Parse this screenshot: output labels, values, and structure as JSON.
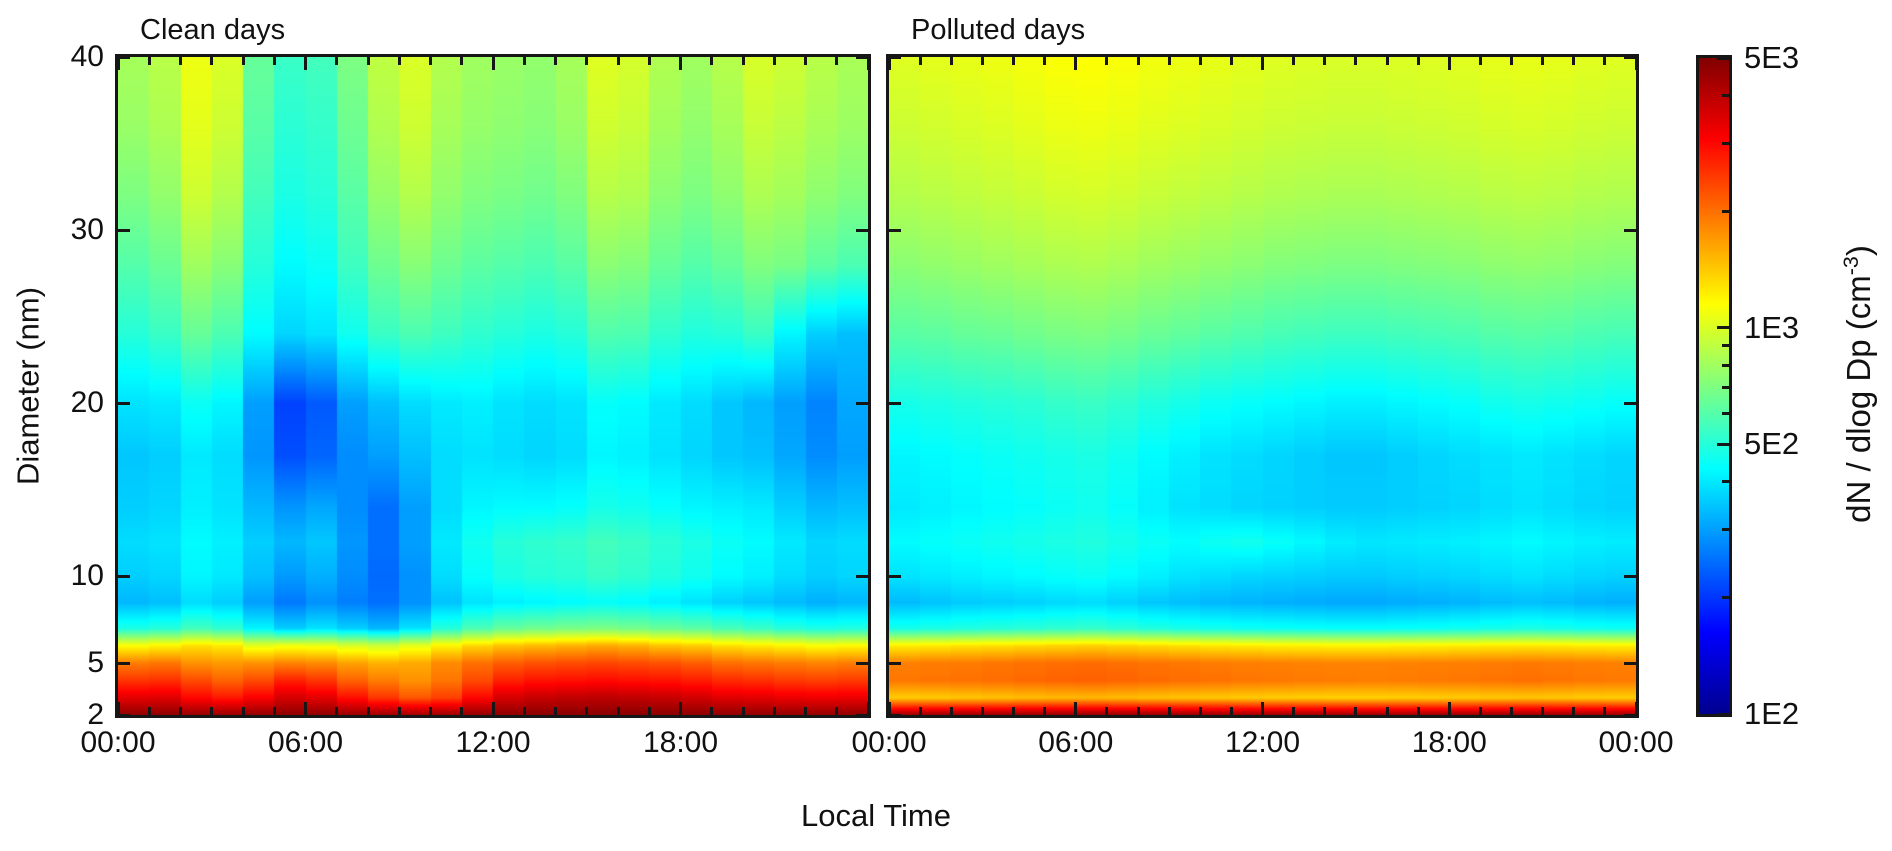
{
  "chart_data": {
    "type": "heatmap",
    "xlabel": "Local Time",
    "ylabel": "Diameter (nm)",
    "value_label": "dN / dlog Dp (cm-3)",
    "hours": [
      0,
      1,
      2,
      3,
      4,
      5,
      6,
      7,
      8,
      9,
      10,
      11,
      12,
      13,
      14,
      15,
      16,
      17,
      18,
      19,
      20,
      21,
      22,
      23
    ],
    "x_axis": {
      "unit": "hour",
      "range": [
        0,
        24
      ],
      "major_tick_hours": [
        0,
        6,
        12,
        18,
        24
      ],
      "minor_tick_step_hours": 1
    },
    "y_axis": {
      "unit": "nm",
      "scale": "linear",
      "range": [
        2,
        40
      ],
      "ticks": [
        40,
        30,
        20,
        10,
        5,
        2
      ]
    },
    "diameters_nm": [
      40,
      36,
      32,
      28,
      24,
      20,
      17,
      14,
      12,
      10,
      8.5,
      7,
      6,
      5,
      4,
      3,
      2
    ],
    "panels": [
      {
        "title": "Clean days",
        "x_labels": [
          {
            "h": 0,
            "t": "00:00"
          },
          {
            "h": 6,
            "t": "06:00"
          },
          {
            "h": 12,
            "t": "12:00"
          },
          {
            "h": 18,
            "t": "18:00"
          }
        ],
        "values_dN_dlogDp": [
          [
            820,
            880,
            1080,
            1000,
            640,
            540,
            560,
            700,
            900,
            1000,
            860,
            800,
            780,
            760,
            820,
            1020,
            980,
            850,
            800,
            870,
            990,
            950,
            880,
            830
          ],
          [
            780,
            840,
            1040,
            950,
            610,
            510,
            530,
            660,
            850,
            950,
            820,
            770,
            750,
            730,
            780,
            960,
            930,
            810,
            760,
            820,
            930,
            890,
            830,
            790
          ],
          [
            700,
            760,
            950,
            860,
            560,
            480,
            500,
            610,
            770,
            860,
            760,
            710,
            690,
            670,
            710,
            870,
            850,
            740,
            700,
            750,
            840,
            810,
            750,
            710
          ],
          [
            600,
            650,
            800,
            730,
            500,
            430,
            450,
            550,
            660,
            730,
            660,
            620,
            600,
            580,
            610,
            740,
            720,
            640,
            600,
            640,
            710,
            690,
            620,
            580
          ],
          [
            500,
            540,
            640,
            580,
            430,
            370,
            390,
            460,
            540,
            580,
            550,
            520,
            500,
            480,
            500,
            590,
            580,
            520,
            490,
            500,
            540,
            420,
            360,
            340
          ],
          [
            390,
            400,
            450,
            420,
            300,
            210,
            230,
            300,
            340,
            380,
            400,
            410,
            390,
            380,
            390,
            440,
            430,
            400,
            380,
            350,
            330,
            300,
            270,
            310
          ],
          [
            350,
            360,
            400,
            380,
            290,
            220,
            240,
            280,
            300,
            340,
            380,
            390,
            380,
            370,
            380,
            420,
            410,
            390,
            370,
            350,
            340,
            310,
            280,
            300
          ],
          [
            360,
            370,
            410,
            390,
            330,
            290,
            310,
            280,
            250,
            300,
            380,
            420,
            430,
            430,
            440,
            470,
            460,
            440,
            420,
            410,
            400,
            360,
            330,
            340
          ],
          [
            380,
            390,
            430,
            410,
            360,
            330,
            350,
            290,
            250,
            300,
            400,
            460,
            500,
            520,
            530,
            560,
            540,
            510,
            480,
            450,
            430,
            400,
            370,
            380
          ],
          [
            360,
            370,
            420,
            400,
            340,
            295,
            320,
            280,
            245,
            285,
            380,
            440,
            480,
            500,
            510,
            540,
            520,
            490,
            460,
            430,
            410,
            380,
            360,
            370
          ],
          [
            330,
            340,
            380,
            360,
            300,
            260,
            285,
            265,
            250,
            285,
            345,
            390,
            410,
            420,
            430,
            440,
            430,
            410,
            390,
            365,
            350,
            335,
            320,
            330
          ],
          [
            480,
            500,
            560,
            520,
            420,
            360,
            390,
            360,
            330,
            390,
            500,
            580,
            640,
            670,
            690,
            700,
            680,
            650,
            620,
            570,
            540,
            500,
            480,
            490
          ],
          [
            1150,
            1200,
            1300,
            1250,
            1050,
            1100,
            1080,
            1000,
            950,
            1050,
            1200,
            1350,
            1450,
            1500,
            1550,
            1600,
            1550,
            1450,
            1400,
            1300,
            1250,
            1200,
            1150,
            1180
          ],
          [
            1900,
            1950,
            1750,
            1700,
            1750,
            1850,
            1800,
            1650,
            1550,
            1600,
            1800,
            2000,
            2150,
            2250,
            2300,
            2350,
            2300,
            2250,
            2150,
            2000,
            1950,
            1900,
            1850,
            1900
          ],
          [
            2500,
            2550,
            2300,
            2100,
            2300,
            2700,
            2500,
            2100,
            1900,
            1750,
            1950,
            2300,
            2700,
            2850,
            2900,
            2950,
            2900,
            2850,
            2750,
            2600,
            2550,
            2450,
            2400,
            2450
          ],
          [
            3400,
            3450,
            3000,
            2800,
            3100,
            3600,
            3400,
            2900,
            2500,
            2200,
            2400,
            3000,
            3600,
            3800,
            3900,
            3950,
            3900,
            3800,
            3650,
            3450,
            3400,
            3300,
            3250,
            3300
          ],
          [
            4700,
            4750,
            4600,
            4550,
            4650,
            4750,
            4700,
            4550,
            4450,
            4400,
            4500,
            4650,
            4750,
            4800,
            4820,
            4850,
            4820,
            4800,
            4770,
            4700,
            4680,
            4650,
            4630,
            4660
          ]
        ]
      },
      {
        "title": "Polluted days",
        "x_labels": [
          {
            "h": 0,
            "t": "00:00"
          },
          {
            "h": 6,
            "t": "06:00"
          },
          {
            "h": 12,
            "t": "12:00"
          },
          {
            "h": 18,
            "t": "18:00"
          },
          {
            "h": 24,
            "t": "00:00"
          }
        ],
        "values_dN_dlogDp": [
          [
            1020,
            1040,
            1060,
            1080,
            1110,
            1140,
            1150,
            1130,
            1100,
            1080,
            1060,
            1040,
            1020,
            1010,
            1000,
            1000,
            1010,
            1020,
            1030,
            1050,
            1060,
            1050,
            1030,
            1020
          ],
          [
            950,
            970,
            990,
            1010,
            1040,
            1070,
            1080,
            1060,
            1030,
            1010,
            990,
            970,
            950,
            940,
            930,
            930,
            940,
            950,
            960,
            980,
            990,
            980,
            960,
            950
          ],
          [
            860,
            880,
            900,
            920,
            940,
            970,
            980,
            960,
            930,
            910,
            890,
            870,
            850,
            840,
            830,
            830,
            840,
            850,
            860,
            880,
            890,
            880,
            860,
            850
          ],
          [
            740,
            760,
            780,
            800,
            820,
            840,
            850,
            830,
            800,
            780,
            760,
            740,
            720,
            710,
            700,
            700,
            710,
            720,
            730,
            750,
            760,
            750,
            730,
            720
          ],
          [
            610,
            620,
            640,
            650,
            670,
            690,
            700,
            680,
            650,
            630,
            610,
            590,
            570,
            560,
            550,
            550,
            560,
            570,
            580,
            600,
            610,
            600,
            580,
            570
          ],
          [
            470,
            480,
            490,
            500,
            510,
            530,
            540,
            520,
            490,
            470,
            450,
            440,
            430,
            420,
            410,
            410,
            420,
            430,
            440,
            460,
            470,
            460,
            450,
            440
          ],
          [
            420,
            430,
            440,
            450,
            460,
            470,
            480,
            460,
            430,
            410,
            390,
            380,
            370,
            360,
            350,
            350,
            360,
            370,
            380,
            390,
            400,
            390,
            380,
            370
          ],
          [
            400,
            410,
            420,
            430,
            440,
            450,
            460,
            440,
            410,
            390,
            380,
            370,
            365,
            360,
            355,
            355,
            360,
            365,
            370,
            380,
            390,
            380,
            370,
            365
          ],
          [
            430,
            440,
            450,
            460,
            470,
            480,
            490,
            470,
            450,
            435,
            455,
            465,
            445,
            425,
            405,
            395,
            400,
            405,
            410,
            420,
            430,
            420,
            410,
            405
          ],
          [
            390,
            400,
            410,
            420,
            430,
            440,
            450,
            430,
            410,
            390,
            380,
            370,
            365,
            360,
            355,
            355,
            360,
            365,
            370,
            380,
            390,
            380,
            370,
            365
          ],
          [
            335,
            345,
            355,
            360,
            365,
            375,
            380,
            365,
            350,
            340,
            330,
            325,
            320,
            315,
            310,
            310,
            315,
            320,
            325,
            335,
            340,
            335,
            325,
            320
          ],
          [
            470,
            480,
            490,
            500,
            510,
            520,
            530,
            510,
            490,
            475,
            465,
            455,
            450,
            445,
            440,
            440,
            445,
            450,
            460,
            470,
            480,
            470,
            460,
            455
          ],
          [
            1230,
            1250,
            1280,
            1300,
            1330,
            1360,
            1380,
            1350,
            1320,
            1290,
            1260,
            1240,
            1220,
            1210,
            1200,
            1200,
            1210,
            1220,
            1230,
            1250,
            1260,
            1250,
            1230,
            1220
          ],
          [
            1880,
            1900,
            1920,
            1950,
            1980,
            2010,
            2030,
            2000,
            1970,
            1940,
            1910,
            1890,
            1870,
            1860,
            1850,
            1850,
            1860,
            1870,
            1890,
            1910,
            1930,
            1910,
            1890,
            1870
          ],
          [
            1950,
            1970,
            1990,
            2020,
            2060,
            2100,
            2120,
            2090,
            2050,
            2020,
            1990,
            1960,
            1940,
            1920,
            1910,
            1900,
            1910,
            1930,
            1950,
            1980,
            2000,
            1980,
            1950,
            1930
          ],
          [
            1400,
            1410,
            1430,
            1450,
            1480,
            1500,
            1510,
            1490,
            1460,
            1440,
            1420,
            1400,
            1390,
            1380,
            1370,
            1370,
            1380,
            1390,
            1400,
            1420,
            1430,
            1420,
            1400,
            1390
          ],
          [
            4600,
            4620,
            4640,
            4660,
            4680,
            4700,
            4710,
            4690,
            4670,
            4650,
            4630,
            4610,
            4600,
            4590,
            4580,
            4570,
            4580,
            4590,
            4600,
            4620,
            4640,
            4620,
            4600,
            4590
          ]
        ]
      }
    ],
    "shared_x_label_between_panels": "00:00",
    "colorbar": {
      "scale": "log",
      "min": 100,
      "max": 5000,
      "ticks": [
        {
          "v": 5000,
          "label": "5E3"
        },
        {
          "v": 1000,
          "label": "1E3"
        },
        {
          "v": 500,
          "label": "5E2"
        },
        {
          "v": 100,
          "label": "1E2"
        }
      ],
      "minor_ticks": [
        4000,
        3000,
        2000,
        900,
        800,
        700,
        600,
        400,
        300,
        200
      ],
      "label_prefix": "dN / dlog Dp (cm",
      "label_sup": "-3",
      "label_suffix": ")",
      "colormap": "jet",
      "jet_stops": [
        [
          0,
          0,
          0,
          143
        ],
        [
          0.125,
          0,
          0,
          255
        ],
        [
          0.375,
          0,
          255,
          255
        ],
        [
          0.625,
          255,
          255,
          0
        ],
        [
          0.875,
          255,
          0,
          0
        ],
        [
          1,
          128,
          0,
          0
        ]
      ]
    }
  }
}
